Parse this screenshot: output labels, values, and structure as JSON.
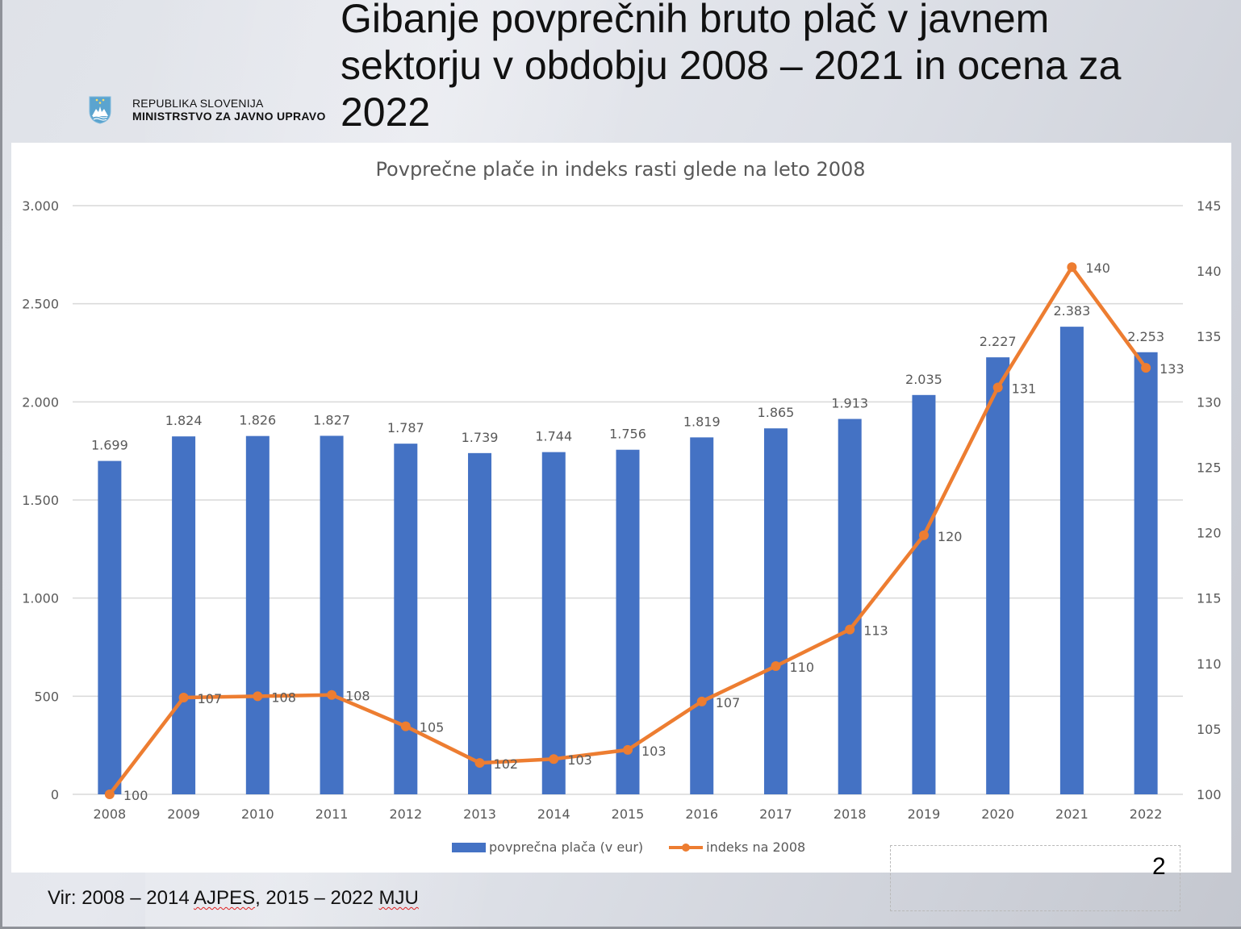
{
  "slide": {
    "title": "Gibanje povprečnih bruto plač v javnem sektorju v obdobju 2008 – 2021 in ocena za 2022",
    "org_line1": "REPUBLIKA SLOVENIJA",
    "org_line2": "MINISTRSTVO ZA JAVNO UPRAVO",
    "logo_icon": "slovenia-coat-of-arms-icon",
    "page_number": "2",
    "source_prefix": "Vir: 2008 – 2014 ",
    "source_ajpes": "AJPES",
    "source_mid": ", 2015 – 2022 ",
    "source_mju": "MJU"
  },
  "colors": {
    "bar": "#4472c4",
    "line": "#ed7d31",
    "grid": "#d9d9d9",
    "axis_text": "#595959"
  },
  "chart_data": {
    "type": "bar+line",
    "title": "Povprečne plače in indeks rasti glede na leto 2008",
    "categories": [
      "2008",
      "2009",
      "2010",
      "2011",
      "2012",
      "2013",
      "2014",
      "2015",
      "2016",
      "2017",
      "2018",
      "2019",
      "2020",
      "2021",
      "2022"
    ],
    "series": [
      {
        "name": "povprečna plača (v eur)",
        "type": "bar",
        "axis": "left",
        "values": [
          1699,
          1824,
          1826,
          1827,
          1787,
          1739,
          1744,
          1756,
          1819,
          1865,
          1913,
          2035,
          2227,
          2383,
          2253
        ],
        "labels": [
          "1.699",
          "1.824",
          "1.826",
          "1.827",
          "1.787",
          "1.739",
          "1.744",
          "1.756",
          "1.819",
          "1.865",
          "1.913",
          "2.035",
          "2.227",
          "2.383",
          "2.253"
        ]
      },
      {
        "name": "indeks na 2008",
        "type": "line",
        "axis": "right",
        "values": [
          100,
          107.4,
          107.5,
          107.6,
          105.2,
          102.4,
          102.7,
          103.4,
          107.1,
          109.8,
          112.6,
          119.8,
          131.1,
          140.3,
          132.6
        ],
        "labels": [
          "100",
          "107",
          "108",
          "108",
          "105",
          "102",
          "103",
          "103",
          "107",
          "110",
          "113",
          "120",
          "131",
          "140",
          "133"
        ]
      }
    ],
    "left_axis": {
      "min": 0,
      "max": 3000,
      "ticks": [
        0,
        500,
        1000,
        1500,
        2000,
        2500,
        3000
      ],
      "tick_labels": [
        "0",
        "500",
        "1.000",
        "1.500",
        "2.000",
        "2.500",
        "3.000"
      ]
    },
    "right_axis": {
      "min": 100,
      "max": 145,
      "ticks": [
        100,
        105,
        110,
        115,
        120,
        125,
        130,
        135,
        140,
        145
      ],
      "tick_labels": [
        "100",
        "105",
        "110",
        "115",
        "120",
        "125",
        "130",
        "135",
        "140",
        "145"
      ]
    },
    "grid": true,
    "legend_position": "bottom",
    "legend": [
      "povprečna plača (v eur)",
      "indeks na 2008"
    ]
  }
}
